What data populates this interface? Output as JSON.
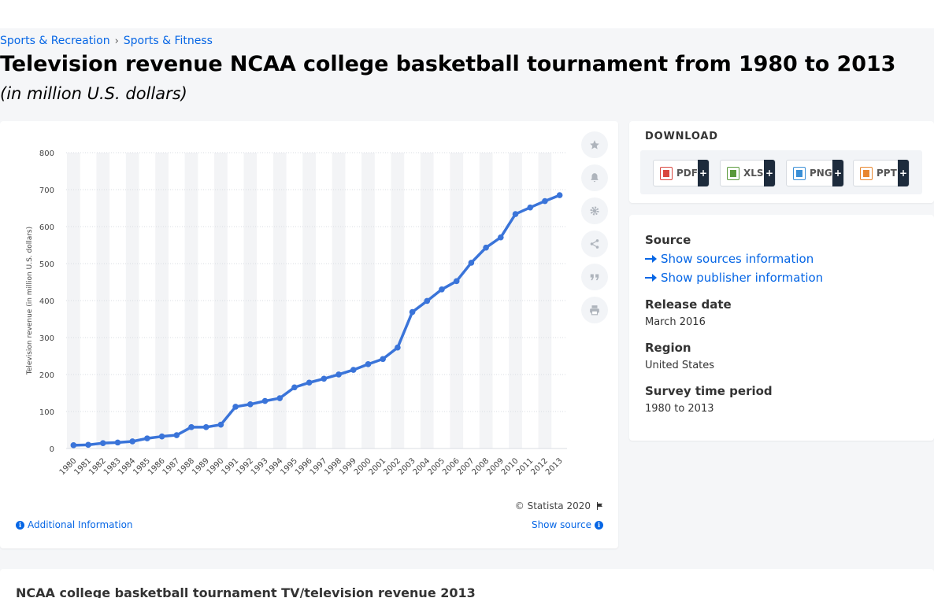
{
  "breadcrumb": {
    "items": [
      "Sports & Recreation",
      "Sports & Fitness"
    ],
    "separator": "›"
  },
  "page": {
    "title": "Television revenue NCAA college basketball tournament from 1980 to 2013",
    "subtitle": "(in million U.S. dollars)"
  },
  "chart_data": {
    "type": "line",
    "title": "",
    "ylabel": "Television revenue (in million U.S. dollars)",
    "xlabel": "",
    "ylim": [
      0,
      800
    ],
    "yticks": [
      0,
      100,
      200,
      300,
      400,
      500,
      600,
      700,
      800
    ],
    "grid": true,
    "color": "#3a74d9",
    "categories": [
      "1980",
      "1981",
      "1982",
      "1983",
      "1984",
      "1985",
      "1986",
      "1987",
      "1988",
      "1989",
      "1990",
      "1991",
      "1992",
      "1993",
      "1994",
      "1995",
      "1996",
      "1997",
      "1998",
      "1999",
      "2000",
      "2001",
      "2002",
      "2003",
      "2004",
      "2005",
      "2006",
      "2007",
      "2008",
      "2009",
      "2010",
      "2011",
      "2012",
      "2013"
    ],
    "series": [
      {
        "values": [
          8.9,
          9.9,
          14.5,
          16.2,
          19.2,
          27.4,
          32.6,
          36.1,
          57.8,
          57.8,
          64.4,
          112.9,
          119.6,
          128.5,
          136.1,
          165.4,
          178.2,
          188.7,
          200.1,
          212.6,
          228.0,
          242.0,
          272.9,
          369.0,
          399.0,
          430.2,
          452.5,
          502.3,
          543.3,
          570.9,
          633.9,
          651.7,
          669.0,
          684.9
        ]
      }
    ]
  },
  "credit": "© Statista 2020",
  "links": {
    "additional_info": "Additional Information",
    "show_source": "Show source"
  },
  "download": {
    "heading": "DOWNLOAD",
    "buttons": [
      {
        "label": "PDF",
        "plus": "+",
        "color": "#d9463e"
      },
      {
        "label": "XLS",
        "plus": "+",
        "color": "#5a9a3b"
      },
      {
        "label": "PNG",
        "plus": "+",
        "color": "#3a8fd6"
      },
      {
        "label": "PPT",
        "plus": "+",
        "color": "#e8862e"
      }
    ]
  },
  "info": {
    "source_label": "Source",
    "show_sources": "Show sources information",
    "show_publisher": "Show publisher information",
    "release_label": "Release date",
    "release_value": "March 2016",
    "region_label": "Region",
    "region_value": "United States",
    "period_label": "Survey time period",
    "period_value": "1980 to 2013"
  },
  "toolbar_icons": [
    "star-icon",
    "bell-icon",
    "gear-icon",
    "share-icon",
    "quote-icon",
    "print-icon"
  ],
  "bottom": {
    "title": "NCAA college basketball tournament TV/television revenue 2013"
  }
}
